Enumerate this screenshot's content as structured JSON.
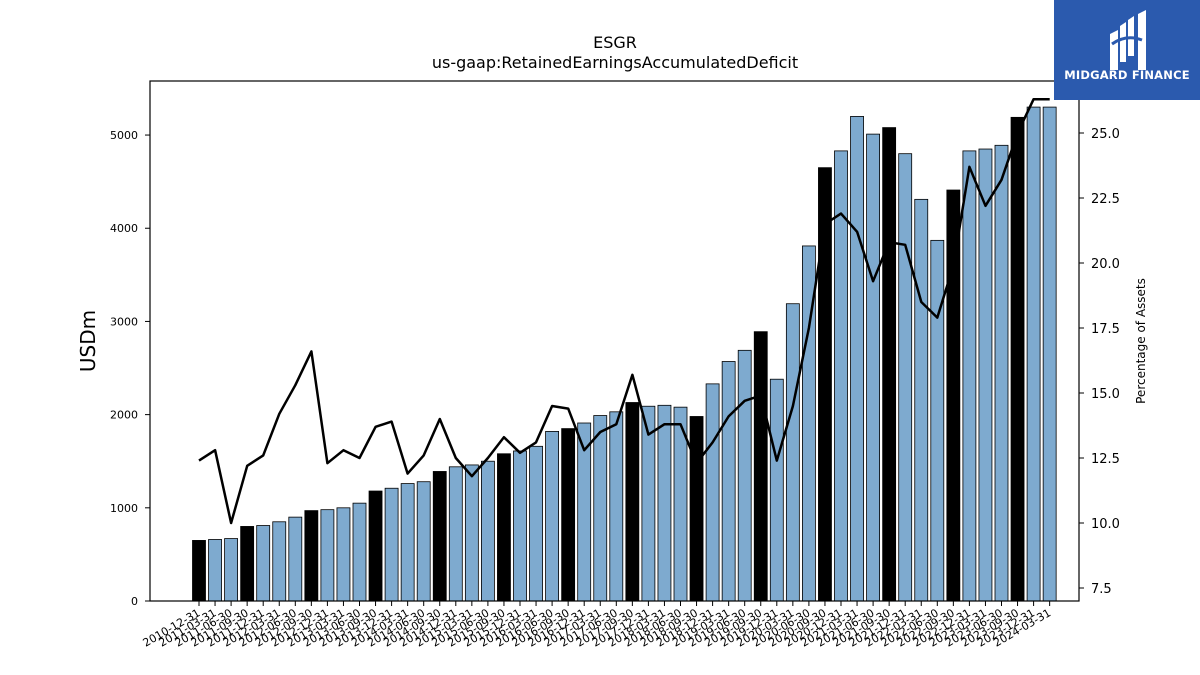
{
  "brand": {
    "name": "MIDGARD FINANCE",
    "logo_icon": "midgard-m-logo-icon",
    "bg_color": "#2b5aae"
  },
  "chart_data": {
    "type": "bar",
    "title": "ESGR",
    "subtitle": "us-gaap:RetainedEarningsAccumulatedDeficit",
    "ylabel": "USDm",
    "y2label": "Percentage of Assets",
    "ylim": [
      0,
      5580
    ],
    "y2lim": [
      7.0,
      27.0
    ],
    "yticks": [
      0,
      1000,
      2000,
      3000,
      4000,
      5000
    ],
    "y2ticks": [
      "7.5",
      "10.0",
      "12.5",
      "15.0",
      "17.5",
      "20.0",
      "22.5",
      "25.0"
    ],
    "grid": false,
    "colors": {
      "bar": "#7eaacf",
      "bar_highlight": "#000000",
      "line": "#000000"
    },
    "categories": [
      "2010-12-31",
      "2011-03-31",
      "2011-06-30",
      "2011-09-30",
      "2011-12-31",
      "2012-03-31",
      "2012-06-30",
      "2012-09-30",
      "2012-12-31",
      "2013-03-31",
      "2013-06-30",
      "2013-09-30",
      "2013-12-31",
      "2014-03-31",
      "2014-06-30",
      "2014-09-30",
      "2014-12-31",
      "2015-03-31",
      "2015-06-30",
      "2015-09-30",
      "2015-12-31",
      "2016-03-31",
      "2016-06-30",
      "2016-09-30",
      "2016-12-31",
      "2017-03-31",
      "2017-06-30",
      "2017-09-30",
      "2017-12-31",
      "2018-03-31",
      "2018-06-30",
      "2018-09-30",
      "2018-12-31",
      "2019-03-31",
      "2019-06-30",
      "2019-09-30",
      "2019-12-31",
      "2020-03-31",
      "2020-06-30",
      "2020-09-30",
      "2020-12-31",
      "2021-03-31",
      "2021-06-30",
      "2021-09-30",
      "2021-12-31",
      "2022-03-31",
      "2022-06-30",
      "2022-09-30",
      "2022-12-31",
      "2023-03-31",
      "2023-06-30",
      "2023-09-30",
      "2023-12-31",
      "2024-03-31"
    ],
    "series": [
      {
        "values": [
          650,
          660,
          670,
          800,
          810,
          850,
          900,
          970,
          980,
          1000,
          1050,
          1180,
          1210,
          1260,
          1280,
          1390,
          1440,
          1460,
          1500,
          1580,
          1610,
          1660,
          1820,
          1850,
          1910,
          1990,
          2030,
          2130,
          2090,
          2100,
          2080,
          1980,
          2330,
          2570,
          2690,
          2890,
          2380,
          3190,
          3810,
          4650,
          4830,
          5200,
          5010,
          5080,
          4800,
          4310,
          3870,
          4410,
          4830,
          4850,
          4890,
          5190,
          5300,
          5300
        ],
        "highlight": [
          true,
          false,
          false,
          true,
          false,
          false,
          false,
          true,
          false,
          false,
          false,
          true,
          false,
          false,
          false,
          true,
          false,
          false,
          false,
          true,
          false,
          false,
          false,
          true,
          false,
          false,
          false,
          true,
          false,
          false,
          false,
          true,
          false,
          false,
          false,
          true,
          false,
          false,
          false,
          true,
          false,
          false,
          false,
          true,
          false,
          false,
          false,
          true,
          false,
          false,
          false,
          true,
          false,
          false
        ]
      },
      {
        "axis": "right",
        "type": "line",
        "values": [
          12.4,
          12.8,
          10.0,
          12.2,
          12.6,
          14.2,
          15.3,
          16.6,
          12.3,
          12.8,
          12.5,
          13.7,
          13.9,
          11.9,
          12.6,
          14.0,
          12.5,
          11.8,
          12.5,
          13.3,
          12.7,
          13.1,
          14.5,
          14.4,
          12.8,
          13.5,
          13.8,
          15.7,
          13.4,
          13.8,
          13.8,
          12.3,
          13.1,
          14.1,
          14.7,
          14.9,
          12.4,
          14.5,
          17.5,
          21.5,
          21.9,
          21.2,
          19.3,
          20.8,
          20.7,
          18.5,
          17.9,
          19.9,
          23.7,
          22.2,
          23.2,
          25.0,
          26.3,
          26.3
        ]
      }
    ]
  }
}
